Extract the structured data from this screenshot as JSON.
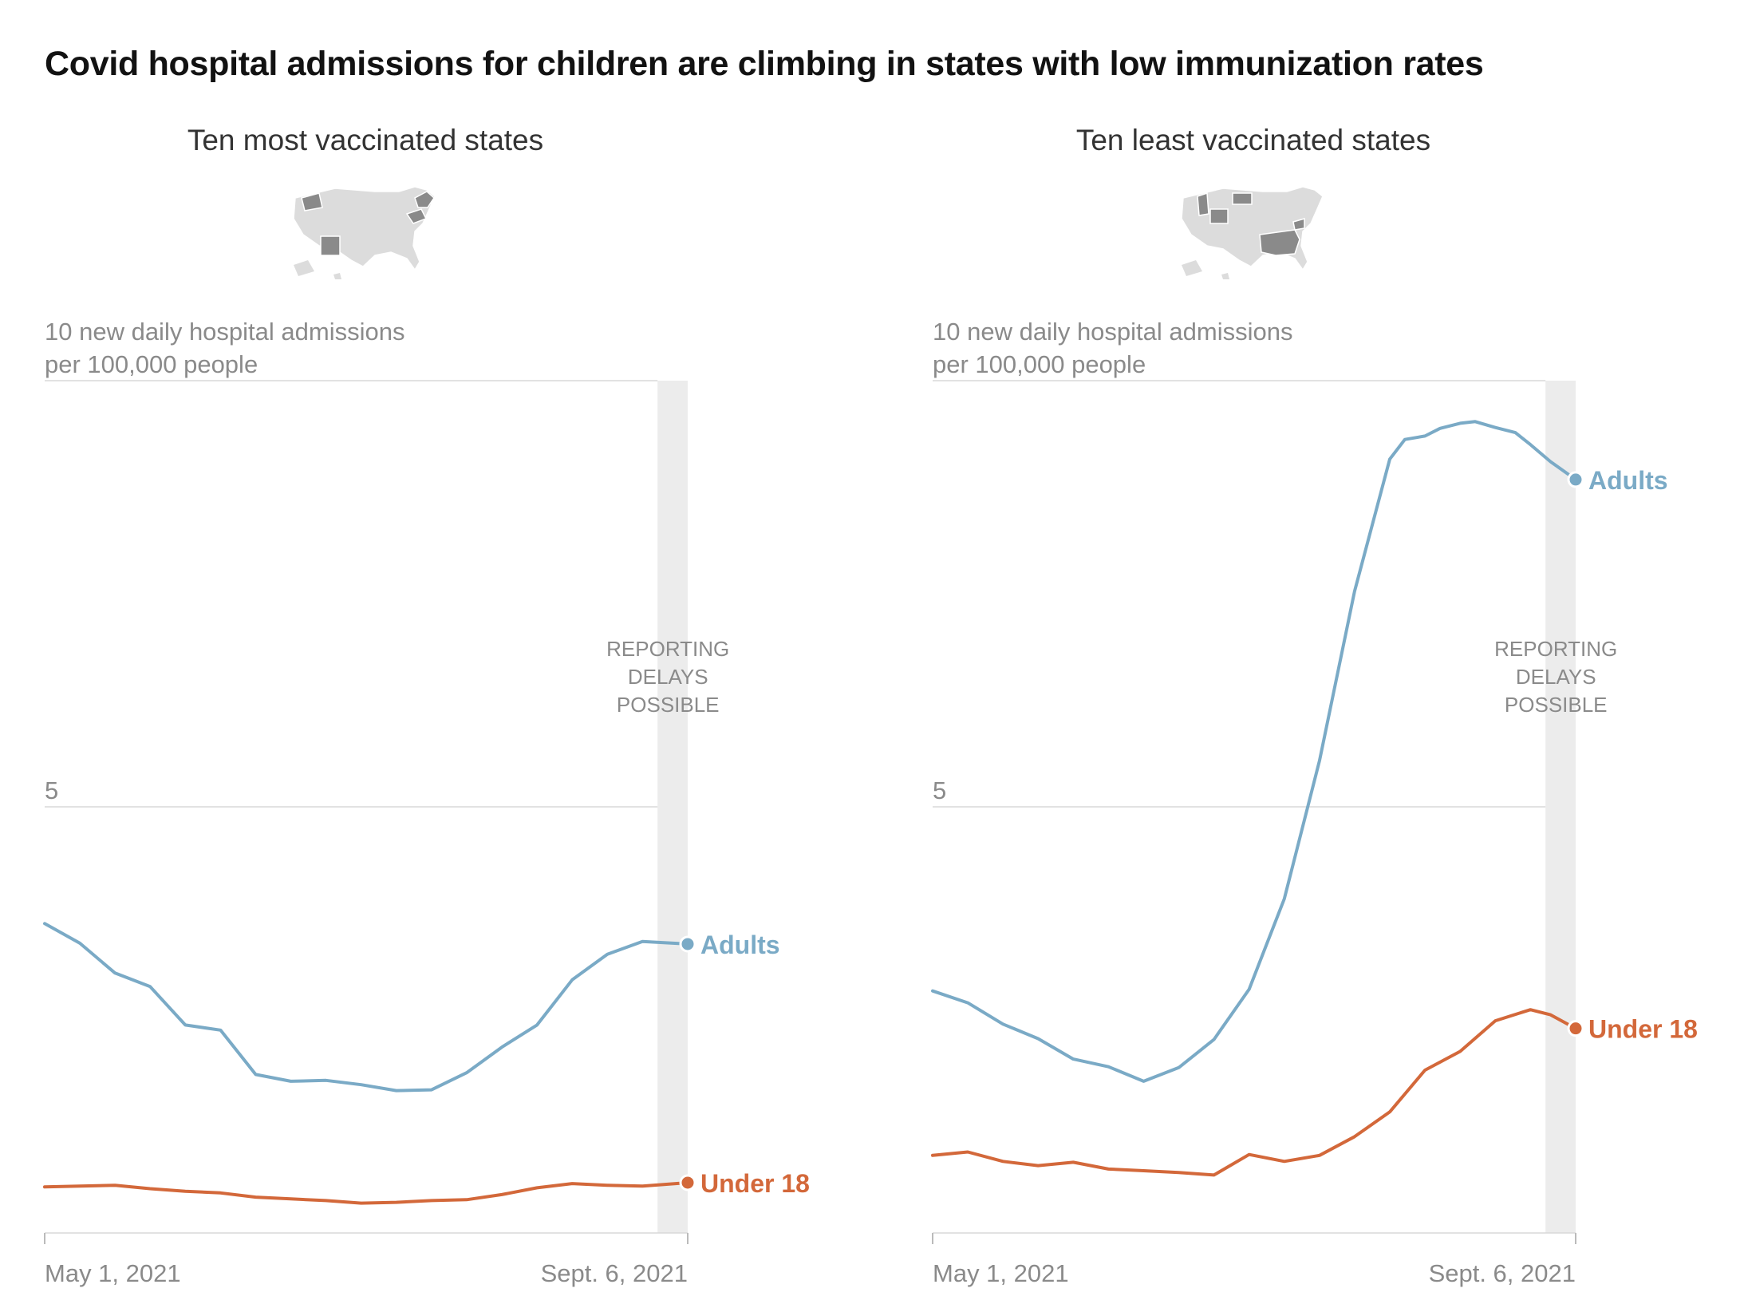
{
  "title": "Covid hospital admissions for children are climbing in states with low immunization rates",
  "colors": {
    "adults": "#7aaac6",
    "under18": "#d3683a",
    "delay_band": "#ececec",
    "grid": "#d8d8d8",
    "axis_text": "#8a8a8a",
    "map_gray": "#dcdcdc",
    "map_highlight": "#8a8a8a"
  },
  "chart_data": [
    {
      "type": "line",
      "panel_title": "Ten most vaccinated states",
      "ylabel_line1": "10 new daily hospital admissions",
      "ylabel_line2": "per 100,000 people",
      "x_start_label": "May 1, 2021",
      "x_end_label": "Sept. 6, 2021",
      "x_start": "2021-05-01",
      "x_end": "2021-09-06",
      "ylim": [
        0,
        10
      ],
      "y_ticks": [
        {
          "value": 5,
          "label": "5"
        }
      ],
      "annotation": [
        "REPORTING",
        "DELAYS",
        "POSSIBLE"
      ],
      "delay_band_start": "2021-08-31",
      "map_icon": "us-map-most-vaccinated-icon",
      "series": [
        {
          "name": "Adults",
          "color": "#7aaac6",
          "x": [
            "2021-05-01",
            "2021-05-08",
            "2021-05-15",
            "2021-05-22",
            "2021-05-29",
            "2021-06-05",
            "2021-06-12",
            "2021-06-19",
            "2021-06-26",
            "2021-07-03",
            "2021-07-10",
            "2021-07-17",
            "2021-07-24",
            "2021-07-31",
            "2021-08-07",
            "2021-08-14",
            "2021-08-21",
            "2021-08-28",
            "2021-09-06"
          ],
          "y": [
            3.63,
            3.4,
            3.05,
            2.89,
            2.44,
            2.38,
            1.86,
            1.78,
            1.79,
            1.74,
            1.67,
            1.68,
            1.88,
            2.18,
            2.44,
            2.97,
            3.27,
            3.42,
            3.39
          ]
        },
        {
          "name": "Under 18",
          "color": "#d3683a",
          "x": [
            "2021-05-01",
            "2021-05-08",
            "2021-05-15",
            "2021-05-22",
            "2021-05-29",
            "2021-06-05",
            "2021-06-12",
            "2021-06-19",
            "2021-06-26",
            "2021-07-03",
            "2021-07-10",
            "2021-07-17",
            "2021-07-24",
            "2021-07-31",
            "2021-08-07",
            "2021-08-14",
            "2021-08-21",
            "2021-08-28",
            "2021-09-06"
          ],
          "y": [
            0.54,
            0.55,
            0.56,
            0.52,
            0.49,
            0.47,
            0.42,
            0.4,
            0.38,
            0.35,
            0.36,
            0.38,
            0.39,
            0.45,
            0.53,
            0.58,
            0.56,
            0.55,
            0.59
          ]
        }
      ]
    },
    {
      "type": "line",
      "panel_title": "Ten least vaccinated states",
      "ylabel_line1": "10 new daily hospital admissions",
      "ylabel_line2": "per 100,000 people",
      "x_start_label": "May 1, 2021",
      "x_end_label": "Sept. 6, 2021",
      "x_start": "2021-05-01",
      "x_end": "2021-09-06",
      "ylim": [
        0,
        10
      ],
      "y_ticks": [
        {
          "value": 5,
          "label": "5"
        }
      ],
      "annotation": [
        "REPORTING",
        "DELAYS",
        "POSSIBLE"
      ],
      "delay_band_start": "2021-08-31",
      "map_icon": "us-map-least-vaccinated-icon",
      "series": [
        {
          "name": "Adults",
          "color": "#7aaac6",
          "x": [
            "2021-05-01",
            "2021-05-08",
            "2021-05-15",
            "2021-05-22",
            "2021-05-29",
            "2021-06-05",
            "2021-06-12",
            "2021-06-19",
            "2021-06-26",
            "2021-07-03",
            "2021-07-10",
            "2021-07-17",
            "2021-07-24",
            "2021-07-31",
            "2021-08-03",
            "2021-08-07",
            "2021-08-10",
            "2021-08-14",
            "2021-08-17",
            "2021-08-21",
            "2021-08-25",
            "2021-08-28",
            "2021-09-01",
            "2021-09-06"
          ],
          "y": [
            2.84,
            2.7,
            2.45,
            2.28,
            2.04,
            1.95,
            1.78,
            1.94,
            2.27,
            2.86,
            3.92,
            5.54,
            7.53,
            9.08,
            9.31,
            9.35,
            9.44,
            9.5,
            9.52,
            9.45,
            9.39,
            9.25,
            9.05,
            8.84
          ]
        },
        {
          "name": "Under 18",
          "color": "#d3683a",
          "x": [
            "2021-05-01",
            "2021-05-08",
            "2021-05-15",
            "2021-05-22",
            "2021-05-29",
            "2021-06-05",
            "2021-06-12",
            "2021-06-19",
            "2021-06-26",
            "2021-07-03",
            "2021-07-10",
            "2021-07-17",
            "2021-07-24",
            "2021-07-31",
            "2021-08-07",
            "2021-08-14",
            "2021-08-21",
            "2021-08-28",
            "2021-09-01",
            "2021-09-06"
          ],
          "y": [
            0.91,
            0.95,
            0.84,
            0.79,
            0.83,
            0.75,
            0.73,
            0.71,
            0.68,
            0.92,
            0.84,
            0.91,
            1.13,
            1.42,
            1.91,
            2.13,
            2.49,
            2.62,
            2.56,
            2.4
          ]
        }
      ]
    }
  ]
}
